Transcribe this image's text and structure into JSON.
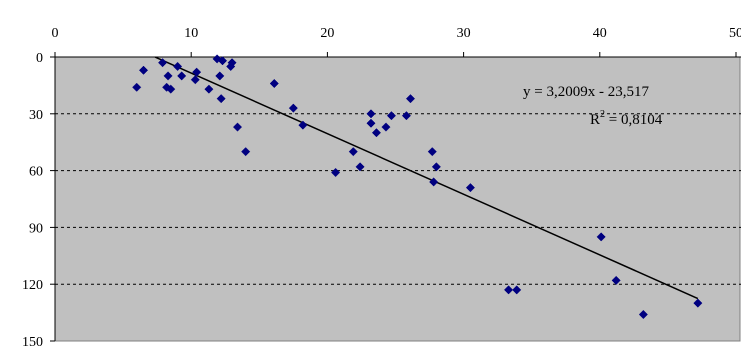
{
  "chart_data": {
    "type": "scatter",
    "x_axis": {
      "range": [
        0,
        50
      ],
      "ticks": [
        0,
        10,
        20,
        30,
        40,
        50
      ],
      "tick_labels": [
        "0",
        "10",
        "20",
        "30",
        "40",
        "50"
      ],
      "position": "top"
    },
    "y_axis": {
      "range": [
        0,
        150
      ],
      "inverted": true,
      "ticks": [
        0,
        30,
        60,
        90,
        120,
        150
      ],
      "tick_labels": [
        "0",
        "30",
        "60",
        "90",
        "120",
        "150"
      ],
      "position": "left"
    },
    "grid": {
      "horizontal": true,
      "style": "dashed",
      "vertical": false
    },
    "plot_background": "#C0C0C0",
    "marker_color": "#000080",
    "trendline_color": "#000000",
    "points": [
      {
        "x": 6.0,
        "y": 16
      },
      {
        "x": 6.5,
        "y": 7
      },
      {
        "x": 7.9,
        "y": 3
      },
      {
        "x": 8.2,
        "y": 16
      },
      {
        "x": 8.3,
        "y": 10
      },
      {
        "x": 8.5,
        "y": 17
      },
      {
        "x": 9.0,
        "y": 5
      },
      {
        "x": 9.3,
        "y": 10
      },
      {
        "x": 10.3,
        "y": 12
      },
      {
        "x": 10.4,
        "y": 8
      },
      {
        "x": 11.3,
        "y": 17
      },
      {
        "x": 11.9,
        "y": 1
      },
      {
        "x": 12.1,
        "y": 10
      },
      {
        "x": 12.2,
        "y": 22
      },
      {
        "x": 12.3,
        "y": 2
      },
      {
        "x": 12.9,
        "y": 5
      },
      {
        "x": 13.0,
        "y": 3
      },
      {
        "x": 13.4,
        "y": 37
      },
      {
        "x": 14.0,
        "y": 50
      },
      {
        "x": 16.1,
        "y": 14
      },
      {
        "x": 17.5,
        "y": 27
      },
      {
        "x": 18.2,
        "y": 36
      },
      {
        "x": 20.6,
        "y": 61
      },
      {
        "x": 21.9,
        "y": 50
      },
      {
        "x": 22.4,
        "y": 58
      },
      {
        "x": 23.2,
        "y": 30
      },
      {
        "x": 23.2,
        "y": 35
      },
      {
        "x": 23.6,
        "y": 40
      },
      {
        "x": 24.3,
        "y": 37
      },
      {
        "x": 24.7,
        "y": 31
      },
      {
        "x": 25.8,
        "y": 31
      },
      {
        "x": 26.1,
        "y": 22
      },
      {
        "x": 27.7,
        "y": 50
      },
      {
        "x": 27.8,
        "y": 66
      },
      {
        "x": 28.0,
        "y": 58
      },
      {
        "x": 30.5,
        "y": 69
      },
      {
        "x": 33.3,
        "y": 123
      },
      {
        "x": 33.9,
        "y": 123
      },
      {
        "x": 40.1,
        "y": 95
      },
      {
        "x": 41.2,
        "y": 118
      },
      {
        "x": 43.2,
        "y": 136
      },
      {
        "x": 47.2,
        "y": 130
      }
    ],
    "trendline": {
      "slope": 3.2009,
      "intercept": -23.517,
      "x_range": [
        7.35,
        47.2
      ]
    },
    "annotations": [
      "y = 3,2009x - 23,517",
      "R",
      "2",
      " = 0,8104"
    ]
  }
}
